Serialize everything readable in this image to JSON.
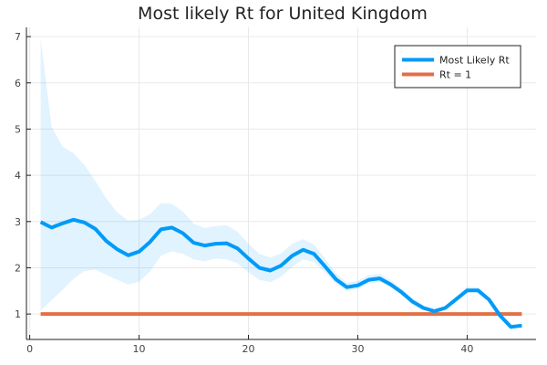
{
  "chart_data": {
    "type": "line",
    "title": "Most likely Rt for United Kingdom",
    "xlabel": "",
    "ylabel": "",
    "xlim": [
      -0.3,
      46.3
    ],
    "ylim": [
      0.45,
      7.2
    ],
    "xticks": [
      0,
      10,
      20,
      30,
      40
    ],
    "yticks": [
      1,
      2,
      3,
      4,
      5,
      6,
      7
    ],
    "grid": true,
    "legend_position": "top-right",
    "series": [
      {
        "name": "Most Likely Rt",
        "color": "#009af9",
        "x": [
          1,
          2,
          3,
          4,
          5,
          6,
          7,
          8,
          9,
          10,
          11,
          12,
          13,
          14,
          15,
          16,
          17,
          18,
          19,
          20,
          21,
          22,
          23,
          24,
          25,
          26,
          27,
          28,
          29,
          30,
          31,
          32,
          33,
          34,
          35,
          36,
          37,
          38,
          39,
          40,
          41,
          42,
          43,
          44,
          45
        ],
        "values": [
          2.99,
          2.87,
          2.96,
          3.04,
          2.98,
          2.84,
          2.58,
          2.4,
          2.27,
          2.35,
          2.56,
          2.83,
          2.87,
          2.75,
          2.54,
          2.48,
          2.52,
          2.53,
          2.42,
          2.2,
          2.0,
          1.94,
          2.05,
          2.26,
          2.39,
          2.3,
          2.03,
          1.75,
          1.58,
          1.62,
          1.74,
          1.77,
          1.64,
          1.47,
          1.27,
          1.13,
          1.06,
          1.13,
          1.32,
          1.51,
          1.51,
          1.31,
          0.97,
          0.72,
          0.75
        ],
        "lower": [
          1.08,
          1.3,
          1.52,
          1.76,
          1.93,
          1.96,
          1.85,
          1.74,
          1.64,
          1.7,
          1.92,
          2.26,
          2.36,
          2.3,
          2.18,
          2.14,
          2.2,
          2.18,
          2.1,
          1.9,
          1.74,
          1.69,
          1.81,
          2.02,
          2.18,
          2.12,
          1.9,
          1.65,
          1.5,
          1.54,
          1.66,
          1.7,
          1.58,
          1.42,
          1.23,
          1.09,
          1.02,
          1.09,
          1.28,
          1.47,
          1.48,
          1.28,
          0.94,
          0.69,
          0.72
        ],
        "upper": [
          6.95,
          5.05,
          4.62,
          4.48,
          4.22,
          3.88,
          3.5,
          3.2,
          3.02,
          3.04,
          3.16,
          3.4,
          3.38,
          3.22,
          2.95,
          2.86,
          2.9,
          2.92,
          2.78,
          2.52,
          2.3,
          2.22,
          2.31,
          2.52,
          2.62,
          2.5,
          2.2,
          1.88,
          1.68,
          1.72,
          1.84,
          1.87,
          1.73,
          1.55,
          1.34,
          1.19,
          1.11,
          1.18,
          1.38,
          1.59,
          1.58,
          1.37,
          1.03,
          0.77,
          0.8
        ]
      },
      {
        "name": "Rt = 1",
        "color": "#e26f46",
        "x": [
          1,
          45
        ],
        "values": [
          1,
          1
        ]
      }
    ]
  }
}
